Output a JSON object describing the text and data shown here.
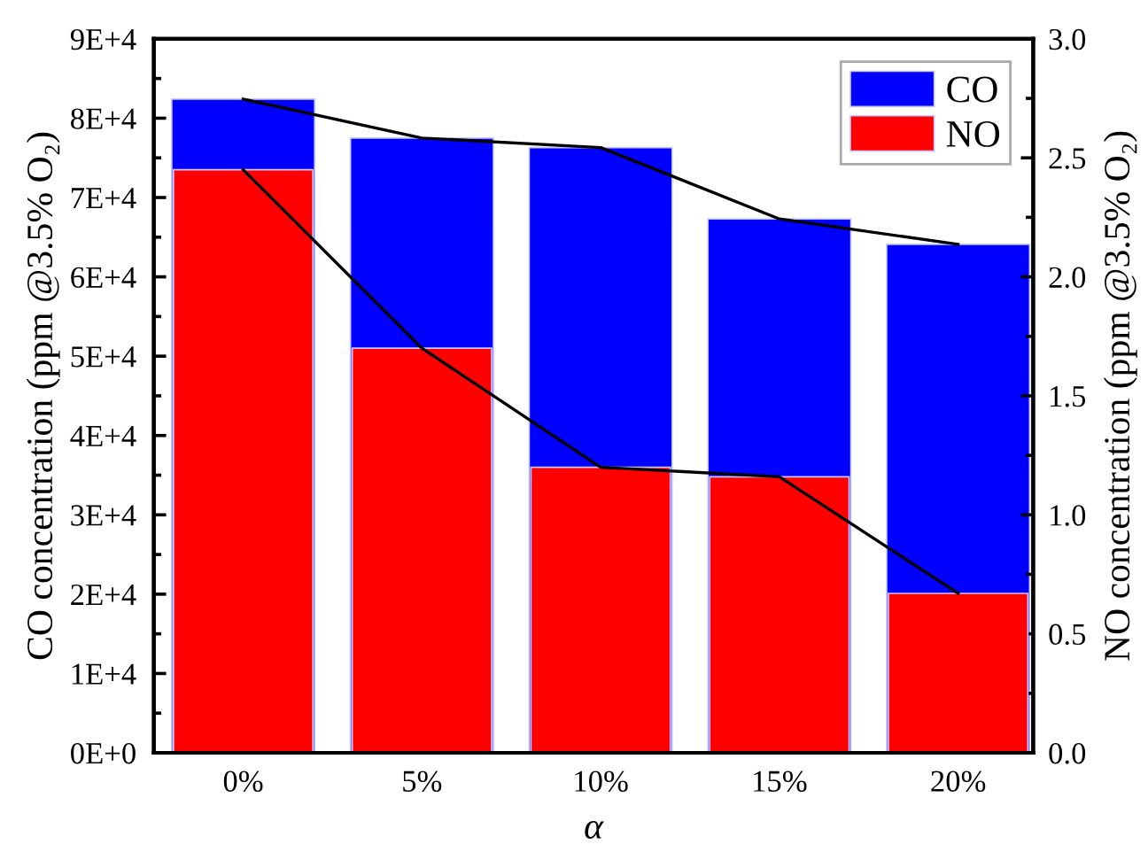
{
  "chart_data": {
    "type": "bar",
    "xlabel": "α",
    "ylabel": "CO concentration (ppm @3.5% O₂)",
    "y2label": "NO concentration (ppm @3.5% O₂)",
    "categories": [
      "0%",
      "5%",
      "10%",
      "15%",
      "20%"
    ],
    "series": [
      {
        "name": "CO",
        "color": "#0000ff",
        "values": [
          82400,
          77500,
          76300,
          67300,
          64100
        ]
      },
      {
        "name": "NO",
        "color": "#ff0000",
        "axis": "y2",
        "values": [
          2.45,
          1.7,
          1.2,
          1.16,
          0.67
        ]
      },
      {
        "type": "line",
        "color": "#000000",
        "values": [
          82400,
          77500,
          76300,
          67300,
          64100
        ]
      },
      {
        "type": "line",
        "color": "#000000",
        "axis": "y2",
        "values": [
          2.45,
          1.7,
          1.2,
          1.16,
          0.67
        ]
      }
    ],
    "ylim": [
      0,
      90000
    ],
    "yticks": [
      {
        "value": 0,
        "label": "0E+0"
      },
      {
        "value": 5000,
        "label": null
      },
      {
        "value": 10000,
        "label": "1E+4"
      },
      {
        "value": 15000,
        "label": null
      },
      {
        "value": 20000,
        "label": "2E+4"
      },
      {
        "value": 25000,
        "label": null
      },
      {
        "value": 30000,
        "label": "3E+4"
      },
      {
        "value": 35000,
        "label": null
      },
      {
        "value": 40000,
        "label": "4E+4"
      },
      {
        "value": 45000,
        "label": null
      },
      {
        "value": 50000,
        "label": "5E+4"
      },
      {
        "value": 55000,
        "label": null
      },
      {
        "value": 60000,
        "label": "6E+4"
      },
      {
        "value": 65000,
        "label": null
      },
      {
        "value": 70000,
        "label": "7E+4"
      },
      {
        "value": 75000,
        "label": null
      },
      {
        "value": 80000,
        "label": "8E+4"
      },
      {
        "value": 85000,
        "label": null
      },
      {
        "value": 90000,
        "label": "9E+4"
      }
    ],
    "y2lim": [
      0,
      3
    ],
    "y2ticks": [
      {
        "value": 0,
        "label": "0.0"
      },
      {
        "value": 0.25,
        "label": null
      },
      {
        "value": 0.5,
        "label": "0.5"
      },
      {
        "value": 0.75,
        "label": null
      },
      {
        "value": 1,
        "label": "1.0"
      },
      {
        "value": 1.25,
        "label": null
      },
      {
        "value": 1.5,
        "label": "1.5"
      },
      {
        "value": 1.75,
        "label": null
      },
      {
        "value": 2,
        "label": "2.0"
      },
      {
        "value": 2.25,
        "label": null
      },
      {
        "value": 2.5,
        "label": "2.5"
      },
      {
        "value": 2.75,
        "label": null
      },
      {
        "value": 3,
        "label": "3.0"
      }
    ],
    "legend": "top right",
    "line_style": "solid"
  }
}
